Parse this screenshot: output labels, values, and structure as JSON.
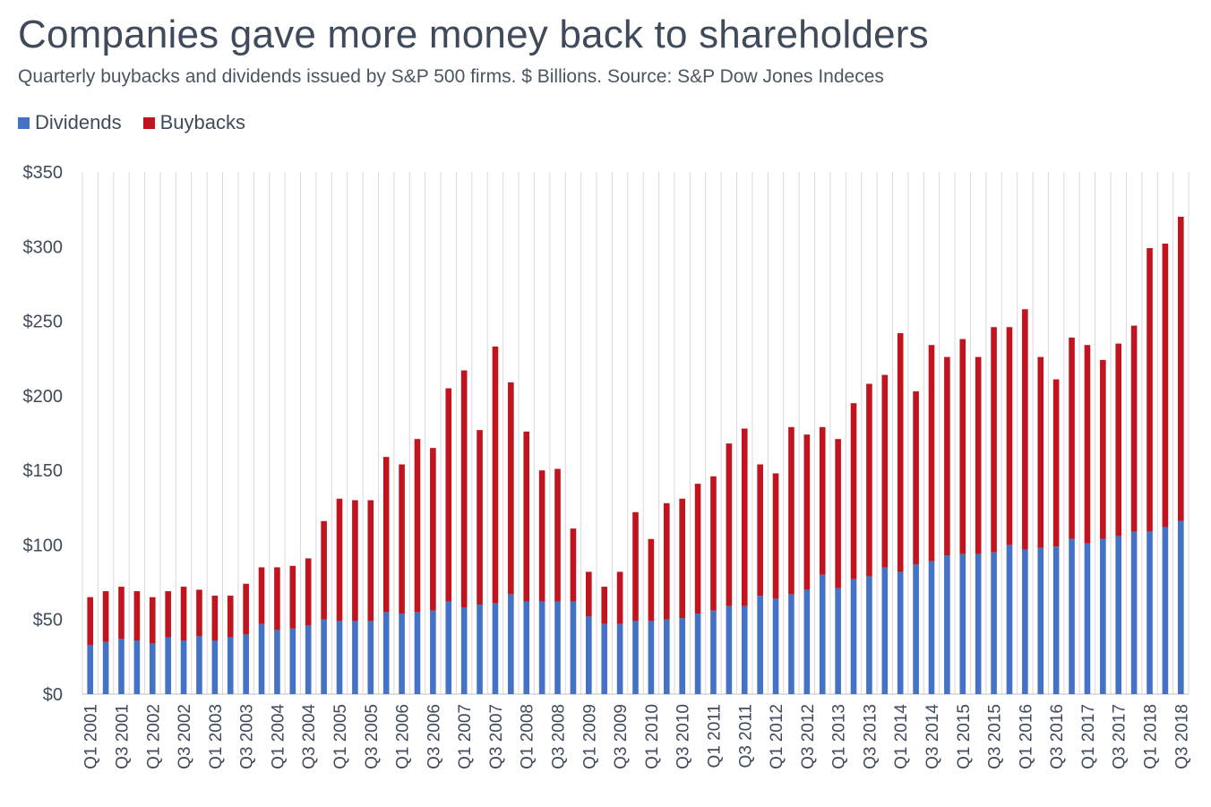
{
  "chart_data": {
    "type": "bar",
    "stacked": true,
    "title": "Companies gave more money back to shareholders",
    "subtitle": "Quarterly buybacks and dividends issued by S&P 500 firms. $ Billions. Source: S&P Dow Jones Indeces",
    "ylim": [
      0,
      350
    ],
    "y_ticks": [
      "$0",
      "$50",
      "$100",
      "$150",
      "$200",
      "$250",
      "$300",
      "$350"
    ],
    "y_tick_values": [
      0,
      50,
      100,
      150,
      200,
      250,
      300,
      350
    ],
    "legend_position": "top-left",
    "grid": "vertical",
    "categories": [
      "Q1 2001",
      "Q2 2001",
      "Q3 2001",
      "Q4 2001",
      "Q1 2002",
      "Q2 2002",
      "Q3 2002",
      "Q4 2002",
      "Q1 2003",
      "Q2 2003",
      "Q3 2003",
      "Q4 2003",
      "Q1 2004",
      "Q2 2004",
      "Q3 2004",
      "Q4 2004",
      "Q1 2005",
      "Q2 2005",
      "Q3 2005",
      "Q4 2005",
      "Q1 2006",
      "Q2 2006",
      "Q3 2006",
      "Q4 2006",
      "Q1 2007",
      "Q2 2007",
      "Q3 2007",
      "Q4 2007",
      "Q1 2008",
      "Q2 2008",
      "Q3 2008",
      "Q4 2008",
      "Q1 2009",
      "Q2 2009",
      "Q3 2009",
      "Q4 2009",
      "Q1 2010",
      "Q2 2010",
      "Q3 2010",
      "Q4 2010",
      "Q1 2011",
      "Q2 2011",
      "Q3 2011",
      "Q4 2011",
      "Q1 2012",
      "Q2 2012",
      "Q3 2012",
      "Q4 2012",
      "Q1 2013",
      "Q2 2013",
      "Q3 2013",
      "Q4 2013",
      "Q1 2014",
      "Q2 2014",
      "Q3 2014",
      "Q4 2014",
      "Q1 2015",
      "Q2 2015",
      "Q3 2015",
      "Q4 2015",
      "Q1 2016",
      "Q2 2016",
      "Q3 2016",
      "Q4 2016",
      "Q1 2017",
      "Q2 2017",
      "Q3 2017",
      "Q4 2017",
      "Q1 2018",
      "Q2 2018",
      "Q3 2018"
    ],
    "shown_x_labels": [
      "Q1 2001",
      "Q3 2001",
      "Q1 2002",
      "Q3 2002",
      "Q1 2003",
      "Q3 2003",
      "Q1 2004",
      "Q3 2004",
      "Q1 2005",
      "Q3 2005",
      "Q1 2006",
      "Q3 2006",
      "Q1 2007",
      "Q3 2007",
      "Q1 2008",
      "Q3 2008",
      "Q1 2009",
      "Q3 2009",
      "Q1 2010",
      "Q3 2010",
      "Q1 2011",
      "Q3 2011",
      "Q1 2012",
      "Q3 2012",
      "Q1 2013",
      "Q3 2013",
      "Q1 2014",
      "Q3 2014",
      "Q1 2015",
      "Q3 2015",
      "Q1 2016",
      "Q3 2016",
      "Q1 2017",
      "Q3 2017",
      "Q1 2018",
      "Q3 2018"
    ],
    "series": [
      {
        "name": "Dividends",
        "color": "#4472c4",
        "values": [
          33,
          35,
          37,
          36,
          34,
          38,
          36,
          39,
          36,
          38,
          40,
          47,
          43,
          44,
          46,
          50,
          49,
          49,
          49,
          55,
          54,
          55,
          56,
          62,
          58,
          60,
          61,
          67,
          62,
          62,
          62,
          62,
          52,
          47,
          47,
          49,
          49,
          50,
          51,
          54,
          56,
          59,
          59,
          66,
          64,
          67,
          70,
          80,
          71,
          77,
          79,
          85,
          82,
          87,
          89,
          93,
          94,
          94,
          95,
          100,
          97,
          98,
          99,
          104,
          101,
          104,
          106,
          109,
          109,
          112,
          116
        ]
      },
      {
        "name": "Buybacks",
        "color": "#c0151f",
        "values": [
          32,
          34,
          35,
          33,
          31,
          31,
          36,
          31,
          30,
          28,
          34,
          38,
          42,
          42,
          45,
          66,
          82,
          81,
          81,
          104,
          100,
          116,
          109,
          143,
          159,
          117,
          172,
          142,
          114,
          88,
          89,
          49,
          30,
          25,
          35,
          73,
          55,
          78,
          80,
          87,
          90,
          109,
          119,
          88,
          84,
          112,
          104,
          99,
          100,
          118,
          129,
          129,
          160,
          116,
          145,
          133,
          144,
          132,
          151,
          146,
          161,
          128,
          112,
          135,
          133,
          120,
          129,
          138,
          190,
          190,
          204
        ]
      }
    ]
  }
}
